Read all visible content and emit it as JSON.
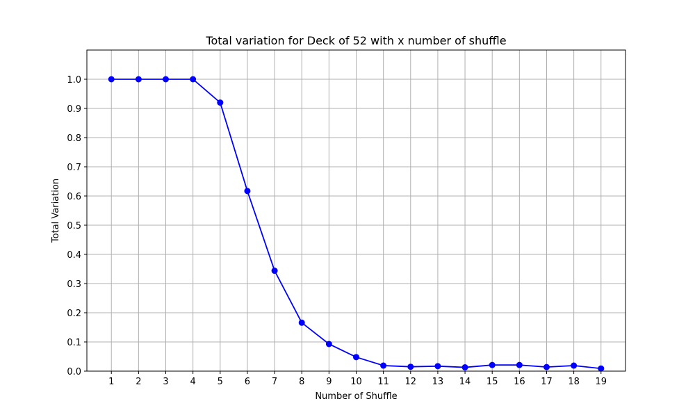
{
  "chart_data": {
    "type": "line",
    "title": "Total variation for Deck of 52 with x number of shuffle",
    "xlabel": "Number of Shuffle",
    "ylabel": "Total Variation",
    "x": [
      1,
      2,
      3,
      4,
      5,
      6,
      7,
      8,
      9,
      10,
      11,
      12,
      13,
      14,
      15,
      16,
      17,
      18,
      19
    ],
    "series": [
      {
        "values": [
          1.0,
          1.0,
          1.0,
          1.0,
          0.92,
          0.617,
          0.344,
          0.166,
          0.093,
          0.048,
          0.019,
          0.015,
          0.017,
          0.013,
          0.021,
          0.021,
          0.014,
          0.019,
          0.009
        ],
        "color": "#0000ff",
        "marker": "circle"
      }
    ],
    "xlim": [
      0.1,
      19.9
    ],
    "ylim": [
      0,
      1.1
    ],
    "x_ticks": [
      1,
      2,
      3,
      4,
      5,
      6,
      7,
      8,
      9,
      10,
      11,
      12,
      13,
      14,
      15,
      16,
      17,
      18,
      19
    ],
    "y_ticks": [
      0.0,
      0.1,
      0.2,
      0.3,
      0.4,
      0.5,
      0.6,
      0.7,
      0.8,
      0.9,
      1.0
    ],
    "y_tick_labels": [
      "0.0",
      "0.1",
      "0.2",
      "0.3",
      "0.4",
      "0.5",
      "0.6",
      "0.7",
      "0.8",
      "0.9",
      "1.0"
    ],
    "grid": true,
    "grid_color": "#b0b0b0"
  }
}
